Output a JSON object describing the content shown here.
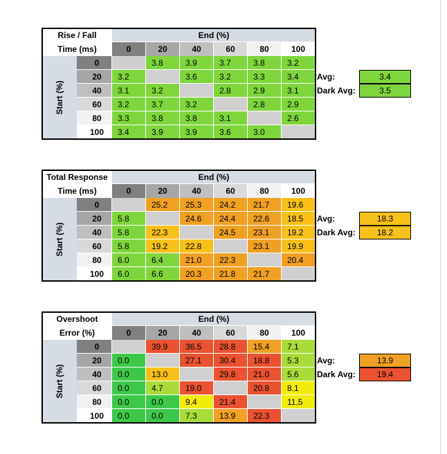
{
  "colors": {
    "header_band": "#d6dce4",
    "col_header_shades": [
      "#808080",
      "#a6a6a6",
      "#bfbfbf",
      "#d9d9d9",
      "#f2f2f2",
      "#ffffff"
    ],
    "diagonal": "#d0d0d0",
    "rise_green": "#7ed63c",
    "scale_green": "#3ec84a",
    "scale_light_green": "#a9dc3a",
    "scale_yellow": "#f2ec0a",
    "scale_amber": "#f8c01a",
    "scale_orange": "#f0a023",
    "scale_red": "#ea5231",
    "border": "#000000"
  },
  "tables": [
    {
      "title_line1": "Rise / Fall",
      "title_line2": "Time (ms)",
      "end_label": "End (%)",
      "start_label": "Start (%)",
      "columns": [
        "0",
        "20",
        "40",
        "60",
        "80",
        "100"
      ],
      "rows": [
        "0",
        "20",
        "40",
        "60",
        "80",
        "100"
      ],
      "cells": [
        [
          "",
          "3.8",
          "3.9",
          "3.7",
          "3.8",
          "3.2"
        ],
        [
          "3.2",
          "",
          "3.6",
          "3.2",
          "3.3",
          "3.4"
        ],
        [
          "3.1",
          "3.2",
          "",
          "2.8",
          "2.9",
          "3.1"
        ],
        [
          "3.2",
          "3.7",
          "3.2",
          "",
          "2.8",
          "2.9"
        ],
        [
          "3.3",
          "3.8",
          "3.8",
          "3.1",
          "",
          "2.6"
        ],
        [
          "3.4",
          "3.9",
          "3.9",
          "3.6",
          "3.0",
          ""
        ]
      ],
      "colors": [
        [
          "diag",
          "g",
          "g",
          "g",
          "g",
          "g"
        ],
        [
          "g",
          "diag",
          "g",
          "g",
          "g",
          "g"
        ],
        [
          "g",
          "g",
          "diag",
          "g",
          "g",
          "g"
        ],
        [
          "g",
          "g",
          "g",
          "diag",
          "g",
          "g"
        ],
        [
          "g",
          "g",
          "g",
          "g",
          "diag",
          "g"
        ],
        [
          "g",
          "g",
          "g",
          "g",
          "g",
          "diag"
        ]
      ],
      "avg_label": "Avg:",
      "avg_value": "3.4",
      "avg_color": "g",
      "dark_avg_label": "Dark Avg:",
      "dark_avg_value": "3.5",
      "dark_avg_color": "g"
    },
    {
      "title_line1": "Total Response",
      "title_line2": "Time (ms)",
      "end_label": "End (%)",
      "start_label": "Start (%)",
      "columns": [
        "0",
        "20",
        "40",
        "60",
        "80",
        "100"
      ],
      "rows": [
        "0",
        "20",
        "40",
        "60",
        "80",
        "100"
      ],
      "cells": [
        [
          "",
          "25.2",
          "25.3",
          "24.2",
          "21.7",
          "19.6"
        ],
        [
          "5.8",
          "",
          "24.6",
          "24.4",
          "22.6",
          "18.5"
        ],
        [
          "5.8",
          "22.3",
          "",
          "24.5",
          "23.1",
          "19.2"
        ],
        [
          "5.8",
          "19.2",
          "22.8",
          "",
          "23.1",
          "19.9"
        ],
        [
          "6.0",
          "6.4",
          "21.0",
          "22.3",
          "",
          "20.4"
        ],
        [
          "6.0",
          "6.6",
          "20.3",
          "21.8",
          "21.7",
          ""
        ]
      ],
      "colors": [
        [
          "diag",
          "o",
          "o",
          "o",
          "o",
          "a"
        ],
        [
          "g",
          "diag",
          "o",
          "o",
          "o",
          "a"
        ],
        [
          "g",
          "a",
          "diag",
          "o",
          "o",
          "a"
        ],
        [
          "g",
          "a",
          "a",
          "diag",
          "o",
          "a"
        ],
        [
          "g",
          "g",
          "o",
          "o",
          "diag",
          "o"
        ],
        [
          "g",
          "g",
          "o",
          "o",
          "o",
          "diag"
        ]
      ],
      "avg_label": "Avg:",
      "avg_value": "18.3",
      "avg_color": "a",
      "dark_avg_label": "Dark Avg:",
      "dark_avg_value": "18.2",
      "dark_avg_color": "a"
    },
    {
      "title_line1": "Overshoot",
      "title_line2": "Error (%)",
      "end_label": "End (%)",
      "start_label": "Start (%)",
      "columns": [
        "0",
        "20",
        "40",
        "60",
        "80",
        "100"
      ],
      "rows": [
        "0",
        "20",
        "40",
        "60",
        "80",
        "100"
      ],
      "cells": [
        [
          "",
          "39.9",
          "36.5",
          "28.8",
          "15.4",
          "7.1"
        ],
        [
          "0.0",
          "",
          "27.1",
          "30.4",
          "18.8",
          "5.3"
        ],
        [
          "0.0",
          "13.0",
          "",
          "29.8",
          "21.0",
          "5.6"
        ],
        [
          "0.0",
          "4.7",
          "19.0",
          "",
          "20.8",
          "8.1"
        ],
        [
          "0.0",
          "0.0",
          "9.4",
          "21.4",
          "",
          "11.5"
        ],
        [
          "0.0",
          "0.0",
          "7.3",
          "13.9",
          "22.3",
          ""
        ]
      ],
      "colors": [
        [
          "diag",
          "r",
          "r",
          "r",
          "o",
          "lg"
        ],
        [
          "sg",
          "diag",
          "r",
          "r",
          "r",
          "lg"
        ],
        [
          "sg",
          "a",
          "diag",
          "r",
          "r",
          "lg"
        ],
        [
          "sg",
          "lg",
          "r",
          "diag",
          "r",
          "y"
        ],
        [
          "sg",
          "sg",
          "y",
          "r",
          "diag",
          "y"
        ],
        [
          "sg",
          "sg",
          "lg",
          "o",
          "r",
          "diag"
        ]
      ],
      "avg_label": "Avg:",
      "avg_value": "13.9",
      "avg_color": "o",
      "dark_avg_label": "Dark Avg:",
      "dark_avg_value": "19.4",
      "dark_avg_color": "r"
    }
  ]
}
